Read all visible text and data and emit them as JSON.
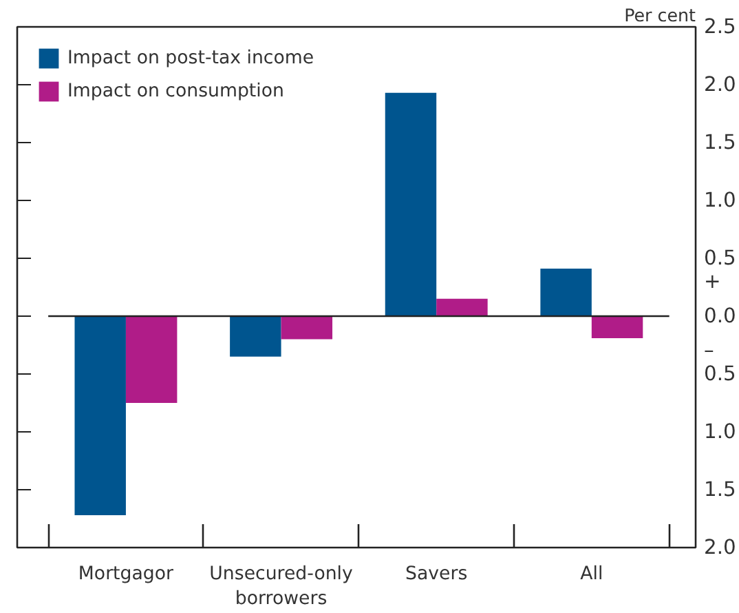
{
  "chart_data": {
    "type": "bar",
    "ylabel": "Per cent",
    "categories": [
      "Mortgagor",
      "Unsecured-only borrowers",
      "Savers",
      "All"
    ],
    "series": [
      {
        "name": "Impact on post-tax income",
        "color": "#00558f",
        "values": [
          -1.72,
          -0.35,
          1.93,
          0.41
        ]
      },
      {
        "name": "Impact on consumption",
        "color": "#b01c88",
        "values": [
          -0.75,
          -0.2,
          0.15,
          -0.19
        ]
      }
    ],
    "ylim": [
      -2.0,
      2.5
    ],
    "yticks": [
      {
        "value": -2.0,
        "label": "2.0"
      },
      {
        "value": -1.5,
        "label": "1.5"
      },
      {
        "value": -1.0,
        "label": "1.0"
      },
      {
        "value": -0.5,
        "label": "0.5"
      },
      "0.0",
      0.5,
      "1.0",
      1.5,
      "2.0",
      2.5
    ],
    "ref_lines": [
      {
        "axis": "y",
        "value": 0
      }
    ],
    "annotations": [
      "+",
      "–"
    ],
    "grid": false,
    "legend": "top left"
  }
}
